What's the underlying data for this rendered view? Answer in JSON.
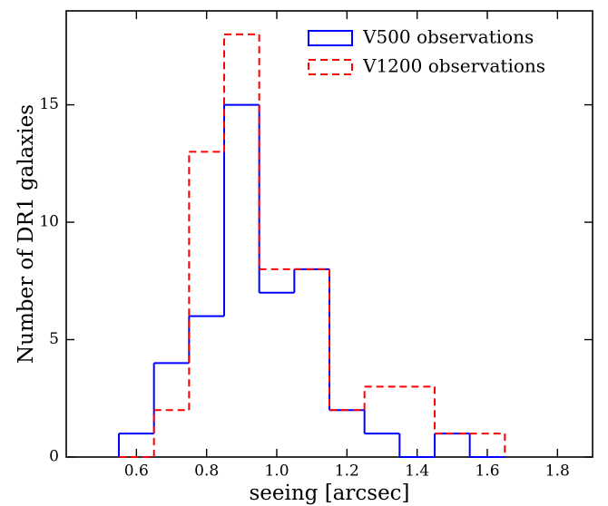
{
  "chart_data": {
    "type": "histogram",
    "xlabel": "seeing [arcsec]",
    "ylabel": "Number of DR1 galaxies",
    "bins": [
      0.55,
      0.65,
      0.75,
      0.85,
      0.95,
      1.05,
      1.15,
      1.25,
      1.35,
      1.45,
      1.55,
      1.65
    ],
    "series": [
      {
        "name": "V500 observations",
        "color": "#0000ff",
        "linestyle": "solid",
        "values": [
          1,
          4,
          6,
          15,
          7,
          8,
          2,
          1,
          0,
          1,
          0
        ]
      },
      {
        "name": "V1200 observations",
        "color": "#ff0000",
        "linestyle": "dashed",
        "values": [
          0,
          2,
          13,
          18,
          8,
          8,
          2,
          3,
          3,
          1,
          1
        ]
      }
    ],
    "xlim": [
      0.4,
      1.9
    ],
    "xticks": [
      0.6,
      0.8,
      {
        "value": 1,
        "label": "1.0"
      },
      1.2,
      1.4,
      1.6,
      1.8
    ],
    "ylim": [
      0,
      19
    ],
    "yticks": [
      0,
      5,
      10,
      15
    ],
    "legend": "upper right"
  }
}
